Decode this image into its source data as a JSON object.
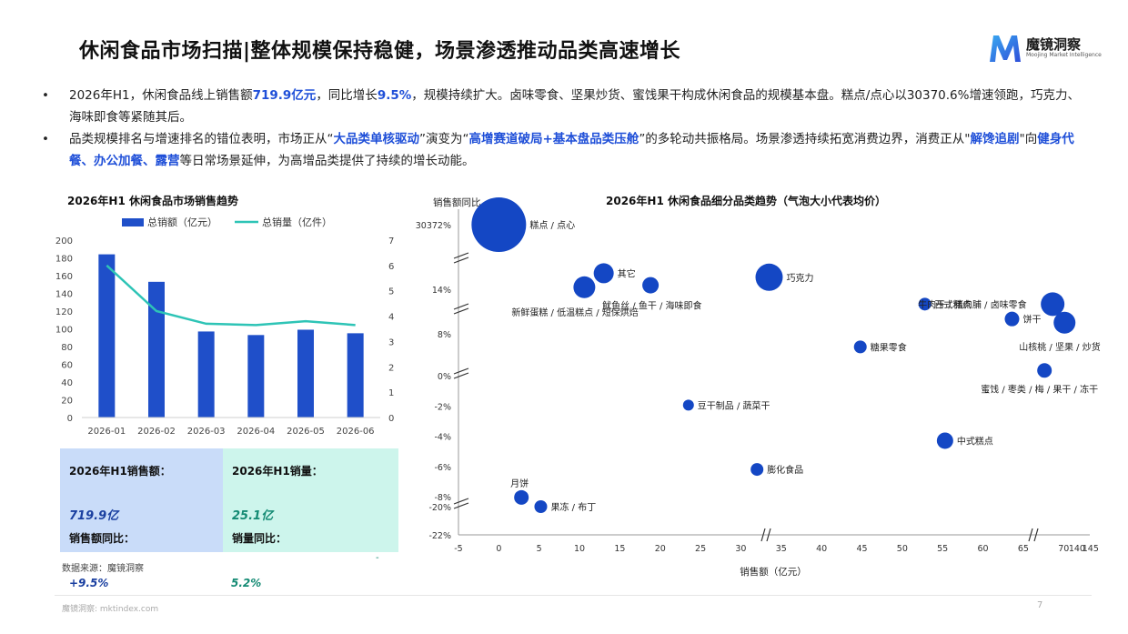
{
  "header": {
    "title": "休闲食品市场扫描|整体规模保持稳健，场景渗透推动品类高速增长",
    "brand_name": "魔镜洞察",
    "brand_sub": "Moojing Market Intelligence"
  },
  "bullets": [
    {
      "dot": "•",
      "parts": [
        {
          "t": "2026年H1，休闲食品线上销售额",
          "h": false
        },
        {
          "t": "719.9亿元",
          "h": true
        },
        {
          "t": "，同比增长",
          "h": false
        },
        {
          "t": "9.5%",
          "h": true
        },
        {
          "t": "，规模持续扩大。卤味零食、坚果炒货、蜜饯果干构成休闲食品的规模基本盘。糕点/点心以30370.6%增速领跑，巧克力、海味即食等紧随其后。",
          "h": false
        }
      ]
    },
    {
      "dot": "•",
      "parts": [
        {
          "t": "品类规模排名与增速排名的错位表明，市场正从“",
          "h": false
        },
        {
          "t": "大品类单核驱动",
          "h": true
        },
        {
          "t": "”演变为“",
          "h": false
        },
        {
          "t": "高增赛道破局+基本盘品类压舱",
          "h": true
        },
        {
          "t": "”的多轮动共振格局。场景渗透持续拓宽消费边界，消费正从\"",
          "h": false
        },
        {
          "t": "解馋追剧",
          "h": true
        },
        {
          "t": "\"向",
          "h": false
        },
        {
          "t": "健身代餐、办公加餐、露营",
          "h": true
        },
        {
          "t": "等日常场景延伸，为高增品类提供了持续的增长动能。",
          "h": false
        }
      ]
    }
  ],
  "kpi": {
    "sales_label": "2026年H1销售额：",
    "sales_value": "719.9亿",
    "sales_yoy_label": "销售额同比：",
    "sales_yoy_value": "+9.5%",
    "volume_label": "2026年H1销量：",
    "volume_value": "25.1亿",
    "volume_yoy_label": "销量同比：",
    "volume_yoy_value": "5.2%",
    "dash": "-"
  },
  "source": "数据来源：魔镜洞察",
  "footer": "魔镜洞察: mktindex.com",
  "page_number": "7",
  "colors": {
    "bar": "#1f4fc9",
    "line": "#2ec4b6",
    "bubble": "#1447c4",
    "highlight": "#1f4fd8",
    "kpi_left": "#c9dcf9",
    "kpi_right": "#cdf5ec"
  },
  "chart_data": [
    {
      "type": "bar",
      "title": "2026年H1 休闲食品市场销售趋势",
      "categories": [
        "2026-01",
        "2026-02",
        "2026-03",
        "2026-04",
        "2026-05",
        "2026-06"
      ],
      "series": [
        {
          "name": "总销额（亿元）",
          "type": "bar",
          "axis": "left",
          "values": [
            184,
            153,
            97,
            93,
            99,
            95
          ]
        },
        {
          "name": "总销量（亿件）",
          "type": "line",
          "axis": "right",
          "values": [
            6.0,
            4.2,
            3.7,
            3.65,
            3.8,
            3.65
          ]
        }
      ],
      "ylim_left": [
        0,
        200
      ],
      "yticks_left": [
        "0",
        "20",
        "40",
        "60",
        "80",
        "100",
        "120",
        "140",
        "160",
        "180",
        "200"
      ],
      "ylim_right": [
        0,
        7
      ],
      "yticks_right": [
        "0",
        "1",
        "2",
        "3",
        "4",
        "5",
        "6",
        "7"
      ],
      "grid": false,
      "legend": "top"
    },
    {
      "type": "scatter",
      "title": "2026年H1 休闲食品细分品类趋势（气泡大小代表均价）",
      "xlabel": "销售额（亿元）",
      "ylabel": "销售额同比",
      "x_ticks": [
        "-5",
        "0",
        "5",
        "10",
        "15",
        "20",
        "25",
        "30",
        "35",
        "40",
        "45",
        "50",
        "55",
        "60",
        "65",
        "70",
        "140",
        "145"
      ],
      "y_ticks": [
        "-22%",
        "-20%",
        "-8%",
        "-6%",
        "-4%",
        "-2%",
        "0%",
        "8%",
        "14%",
        "30372%"
      ],
      "axis_breaks": "both",
      "points": [
        {
          "label": "糕点 / 点心",
          "x": 0,
          "y": 30370.6,
          "size": 30
        },
        {
          "label": "其它",
          "x": 13,
          "y": 18,
          "size": 11
        },
        {
          "label": "新鲜蛋糕 / 低温糕点 / 短保烘焙",
          "x": 10.6,
          "y": 14.5,
          "size": 12
        },
        {
          "label": "鱿鱼丝 / 鱼干 / 海味即食",
          "x": 18.8,
          "y": 15,
          "size": 9
        },
        {
          "label": "巧克力",
          "x": 33.5,
          "y": 17,
          "size": 15
        },
        {
          "label": "西式糕点",
          "x": 52.8,
          "y": 12,
          "size": 7
        },
        {
          "label": "饼干",
          "x": 63.6,
          "y": 10,
          "size": 8
        },
        {
          "label": "牛肉干 / 猪肉脯 / 卤味零食",
          "x": 140.3,
          "y": 12,
          "size": 13
        },
        {
          "label": "山核桃 / 坚果 / 炒货",
          "x": 138.7,
          "y": 9.5,
          "size": 12
        },
        {
          "label": "糖果零食",
          "x": 44.8,
          "y": 5.5,
          "size": 7
        },
        {
          "label": "蜜饯 / 枣类 / 梅 / 果干 / 冻干",
          "x": 136.6,
          "y": 1.0,
          "size": 8
        },
        {
          "label": "豆干制品 / 蔬菜干",
          "x": 23.5,
          "y": -1.95,
          "size": 6
        },
        {
          "label": "中式糕点",
          "x": 55.3,
          "y": -4.3,
          "size": 9
        },
        {
          "label": "膨化食品",
          "x": 32,
          "y": -6.2,
          "size": 7
        },
        {
          "label": "月饼",
          "x": 2.8,
          "y": -8.9,
          "size": 8
        },
        {
          "label": "果冻 / 布丁",
          "x": 5.2,
          "y": -20.0,
          "size": 7
        }
      ]
    }
  ]
}
